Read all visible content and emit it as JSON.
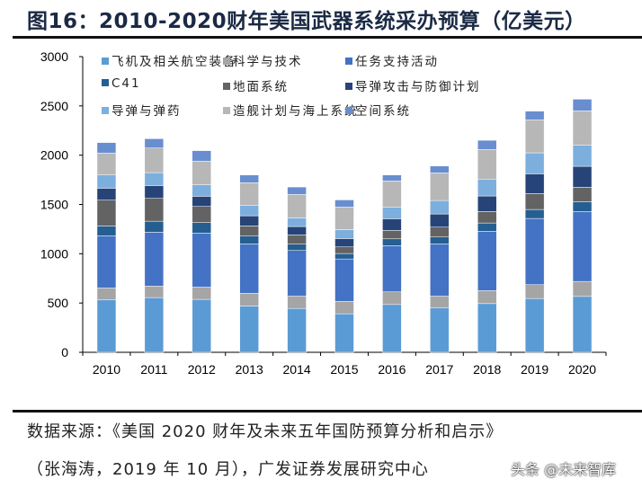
{
  "title": "图16：2010-2020财年美国武器系统采办预算（亿美元）",
  "source_line1": "数据来源：《美国 2020 财年及未来五年国防预算分析和启示》",
  "source_line2": "（张海涛，2019 年 10 月），广发证券发展研究中心",
  "watermark": "头条 @未来智库",
  "chart_data": {
    "type": "bar",
    "stacked": true,
    "title": "",
    "xlabel": "",
    "ylabel": "",
    "ylim": [
      0,
      3000
    ],
    "yticks": [
      "0",
      "500",
      "1000",
      "1500",
      "2000",
      "2500",
      "3000"
    ],
    "grid": false,
    "legend_position": "top",
    "categories": [
      "2010",
      "2011",
      "2012",
      "2013",
      "2014",
      "2015",
      "2016",
      "2017",
      "2018",
      "2019",
      "2020"
    ],
    "series": [
      {
        "name": "飞机及相关航空装备",
        "color": "#5B9BD5",
        "values": [
          531,
          555,
          537,
          470,
          445,
          391,
          485,
          449,
          494,
          546,
          567
        ]
      },
      {
        "name": "科学与技术",
        "color": "#A5A5A5",
        "values": [
          121,
          116,
          124,
          128,
          125,
          125,
          128,
          121,
          131,
          140,
          152
        ]
      },
      {
        "name": "任务支持活动",
        "color": "#4472C4",
        "values": [
          529,
          547,
          548,
          501,
          463,
          431,
          468,
          529,
          602,
          672,
          709
        ]
      },
      {
        "name": "C41",
        "color": "#255E91",
        "values": [
          101,
          112,
          107,
          80,
          64,
          55,
          70,
          71,
          85,
          91,
          100
        ]
      },
      {
        "name": "地面系统",
        "color": "#636363",
        "values": [
          262,
          232,
          164,
          103,
          94,
          67,
          85,
          100,
          116,
          161,
          146
        ]
      },
      {
        "name": "导弹攻击与防御计划",
        "color": "#264478",
        "values": [
          121,
          130,
          103,
          103,
          85,
          85,
          119,
          133,
          158,
          201,
          213
        ]
      },
      {
        "name": "导弹与弹药",
        "color": "#7CAFDD",
        "values": [
          134,
          131,
          116,
          104,
          88,
          91,
          116,
          137,
          167,
          213,
          216
        ]
      },
      {
        "name": "造舰计划与海上系统",
        "color": "#B7B7B7",
        "values": [
          222,
          250,
          240,
          231,
          237,
          229,
          267,
          280,
          304,
          335,
          347
        ]
      },
      {
        "name": "空间系统",
        "color": "#698ED0",
        "values": [
          107,
          94,
          107,
          79,
          76,
          72,
          61,
          70,
          94,
          88,
          118
        ]
      }
    ]
  }
}
